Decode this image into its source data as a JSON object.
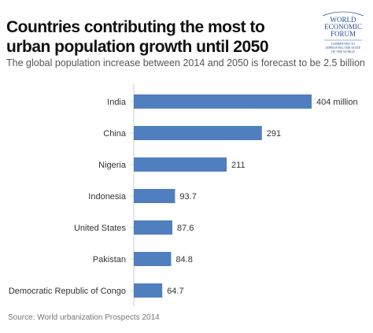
{
  "header": {
    "title": "Countries contributing the most to urban population growth until 2050",
    "subtitle": "The global population increase between 2014 and 2050 is forecast to be 2.5 billion"
  },
  "logo": {
    "line1": "WORLD",
    "line2": "ECONOMIC",
    "line3": "FORUM",
    "tagline1": "COMMITTED TO",
    "tagline2": "IMPROVING THE STATE",
    "tagline3": "OF THE WORLD"
  },
  "footer": {
    "source": "Source: World urbanization Prospects 2014"
  },
  "chart_data": {
    "type": "bar",
    "orientation": "horizontal",
    "categories": [
      "India",
      "China",
      "Nigeria",
      "Indonesia",
      "United States",
      "Pakistan",
      "Democratic Republic of Congo"
    ],
    "values": [
      404,
      291,
      211,
      93.7,
      87.6,
      84.8,
      64.7
    ],
    "value_labels": [
      "404 million",
      "291",
      "211",
      "93.7",
      "87.6",
      "84.8",
      "64.7"
    ],
    "bar_color": "#4f7fbf",
    "xlim": [
      0,
      404
    ],
    "grid": false,
    "legend": "none"
  }
}
